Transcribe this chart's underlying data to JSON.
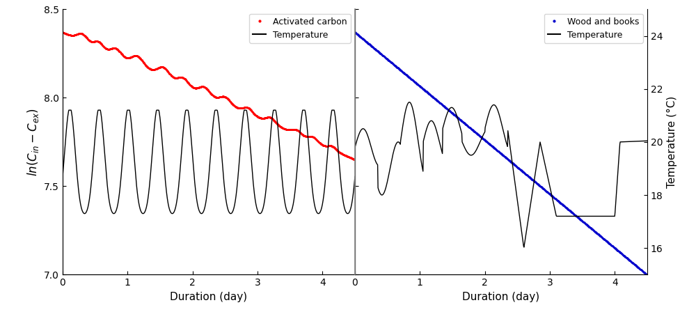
{
  "ylabel_left": "ln(C_{in} - C_{ex})",
  "ylabel_right": "Temperature (°C)",
  "xlabel": "Duration (day)",
  "ylim_left": [
    7.0,
    8.5
  ],
  "ylim_right": [
    15.0,
    25.0
  ],
  "xlim_left": [
    0,
    4.5
  ],
  "xlim_right": [
    0,
    4.5
  ],
  "yticks_left": [
    7.0,
    7.5,
    8.0,
    8.5
  ],
  "yticks_right": [
    16,
    18,
    20,
    22,
    24
  ],
  "xticks": [
    0,
    1,
    2,
    3,
    4
  ],
  "legend1_labels": [
    "Activated carbon",
    "Temperature"
  ],
  "legend2_labels": [
    "Wood and books",
    "Temperature"
  ],
  "color_red": "#FF0000",
  "color_blue": "#0000CC",
  "color_black": "#000000",
  "color_gray": "#888888"
}
